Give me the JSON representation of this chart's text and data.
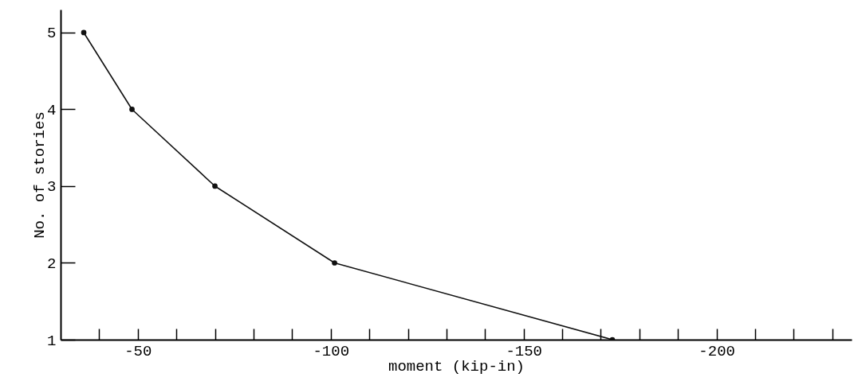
{
  "chart_data": {
    "type": "line",
    "xlabel": "moment  (kip-in)",
    "ylabel": "No. of stories",
    "x": [
      -36,
      -48.5,
      -70,
      -101,
      -173
    ],
    "series": [
      {
        "color": "#111111",
        "values": [
          5,
          4,
          3,
          2,
          1
        ]
      }
    ],
    "xlim": [
      -30,
      -235
    ],
    "xticks": [
      {
        "value": -40,
        "label": null
      },
      -50,
      {
        "value": -60,
        "label": null
      },
      {
        "value": -70,
        "label": null
      },
      {
        "value": -80,
        "label": null
      },
      {
        "value": -90,
        "label": null
      },
      -100,
      {
        "value": -110,
        "label": null
      },
      {
        "value": -120,
        "label": null
      },
      {
        "value": -130,
        "label": null
      },
      {
        "value": -140,
        "label": null
      },
      -150,
      {
        "value": -160,
        "label": null
      },
      {
        "value": -170,
        "label": null
      },
      {
        "value": -180,
        "label": null
      },
      {
        "value": -190,
        "label": null
      },
      -200,
      {
        "value": -210,
        "label": null
      },
      {
        "value": -220,
        "label": null
      },
      {
        "value": -230,
        "label": null
      }
    ],
    "ylim": [
      1,
      5.3
    ],
    "yticks": [
      1,
      2,
      3,
      4,
      5
    ],
    "grid": false,
    "marker": "circle",
    "line_style": "solid"
  }
}
